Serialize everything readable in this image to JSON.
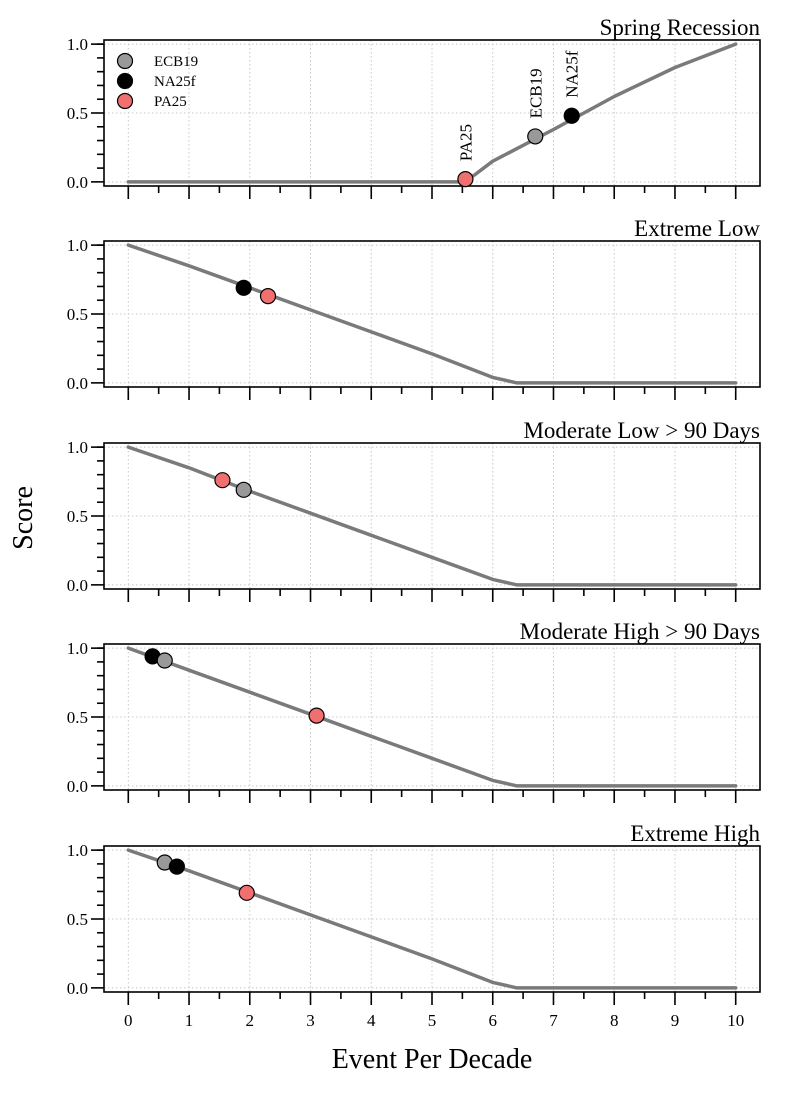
{
  "figure": {
    "ylabel": "Score",
    "xlabel": "Event Per Decade"
  },
  "legend": {
    "items": [
      {
        "name": "ECB19",
        "color": "#999999"
      },
      {
        "name": "NA25f",
        "color": "#000000"
      },
      {
        "name": "PA25",
        "color": "#f07070"
      }
    ]
  },
  "chart_data": [
    {
      "type": "line",
      "title": "Spring Recession",
      "xlim": [
        -0.4,
        10.4
      ],
      "ylim": [
        -0.03,
        1.03
      ],
      "xticks": [
        0,
        1,
        2,
        3,
        4,
        5,
        6,
        7,
        8,
        9,
        10
      ],
      "yticks": [
        0.0,
        0.5,
        1.0
      ],
      "ytick_labels": [
        "0.0",
        "0.5",
        "1.0"
      ],
      "grid": true,
      "curve": {
        "x": [
          0,
          5.5,
          5.7,
          6.0,
          7.0,
          8.0,
          9.0,
          10.0
        ],
        "y": [
          0,
          0,
          0.05,
          0.15,
          0.38,
          0.62,
          0.83,
          1.0
        ]
      },
      "points": [
        {
          "series": "ECB19",
          "x": 6.7,
          "y": 0.33,
          "annotation": "ECB19"
        },
        {
          "series": "NA25f",
          "x": 7.3,
          "y": 0.48,
          "annotation": "NA25f"
        },
        {
          "series": "PA25",
          "x": 5.55,
          "y": 0.02,
          "annotation": "PA25"
        }
      ]
    },
    {
      "type": "line",
      "title": "Extreme Low",
      "xlim": [
        -0.4,
        10.4
      ],
      "ylim": [
        -0.03,
        1.03
      ],
      "xticks": [
        0,
        1,
        2,
        3,
        4,
        5,
        6,
        7,
        8,
        9,
        10
      ],
      "yticks": [
        0.0,
        0.5,
        1.0
      ],
      "ytick_labels": [
        "0.0",
        "0.5",
        "1.0"
      ],
      "grid": true,
      "curve": {
        "x": [
          0,
          1,
          2,
          3,
          4,
          5,
          6,
          6.4,
          10
        ],
        "y": [
          1.0,
          0.85,
          0.69,
          0.53,
          0.37,
          0.21,
          0.04,
          0.0,
          0.0
        ]
      },
      "points": [
        {
          "series": "NA25f",
          "x": 1.9,
          "y": 0.69
        },
        {
          "series": "PA25",
          "x": 2.3,
          "y": 0.63
        }
      ]
    },
    {
      "type": "line",
      "title": "Moderate Low > 90 Days",
      "xlim": [
        -0.4,
        10.4
      ],
      "ylim": [
        -0.03,
        1.03
      ],
      "xticks": [
        0,
        1,
        2,
        3,
        4,
        5,
        6,
        7,
        8,
        9,
        10
      ],
      "yticks": [
        0.0,
        0.5,
        1.0
      ],
      "ytick_labels": [
        "0.0",
        "0.5",
        "1.0"
      ],
      "grid": true,
      "curve": {
        "x": [
          0,
          1,
          2,
          3,
          4,
          5,
          6,
          6.4,
          10
        ],
        "y": [
          1.0,
          0.85,
          0.68,
          0.52,
          0.36,
          0.2,
          0.04,
          0.0,
          0.0
        ]
      },
      "points": [
        {
          "series": "PA25",
          "x": 1.55,
          "y": 0.76
        },
        {
          "series": "ECB19",
          "x": 1.9,
          "y": 0.69
        }
      ]
    },
    {
      "type": "line",
      "title": "Moderate High > 90 Days",
      "xlim": [
        -0.4,
        10.4
      ],
      "ylim": [
        -0.03,
        1.03
      ],
      "xticks": [
        0,
        1,
        2,
        3,
        4,
        5,
        6,
        7,
        8,
        9,
        10
      ],
      "yticks": [
        0.0,
        0.5,
        1.0
      ],
      "ytick_labels": [
        "0.0",
        "0.5",
        "1.0"
      ],
      "grid": true,
      "curve": {
        "x": [
          0,
          1,
          2,
          3,
          4,
          5,
          6,
          6.4,
          10
        ],
        "y": [
          1.0,
          0.84,
          0.68,
          0.52,
          0.36,
          0.2,
          0.04,
          0.0,
          0.0
        ]
      },
      "points": [
        {
          "series": "NA25f",
          "x": 0.4,
          "y": 0.94
        },
        {
          "series": "ECB19",
          "x": 0.6,
          "y": 0.91
        },
        {
          "series": "PA25",
          "x": 3.1,
          "y": 0.51
        }
      ]
    },
    {
      "type": "line",
      "title": "Extreme High",
      "xlim": [
        -0.4,
        10.4
      ],
      "ylim": [
        -0.03,
        1.03
      ],
      "xticks": [
        0,
        1,
        2,
        3,
        4,
        5,
        6,
        7,
        8,
        9,
        10
      ],
      "xtick_labels": [
        "0",
        "1",
        "2",
        "3",
        "4",
        "5",
        "6",
        "7",
        "8",
        "9",
        "10"
      ],
      "yticks": [
        0.0,
        0.5,
        1.0
      ],
      "ytick_labels": [
        "0.0",
        "0.5",
        "1.0"
      ],
      "grid": true,
      "curve": {
        "x": [
          0,
          1,
          2,
          3,
          4,
          5,
          6,
          6.4,
          10
        ],
        "y": [
          1.0,
          0.85,
          0.69,
          0.53,
          0.37,
          0.21,
          0.04,
          0.0,
          0.0
        ]
      },
      "points": [
        {
          "series": "ECB19",
          "x": 0.6,
          "y": 0.91
        },
        {
          "series": "NA25f",
          "x": 0.8,
          "y": 0.88
        },
        {
          "series": "PA25",
          "x": 1.95,
          "y": 0.69
        }
      ]
    }
  ]
}
